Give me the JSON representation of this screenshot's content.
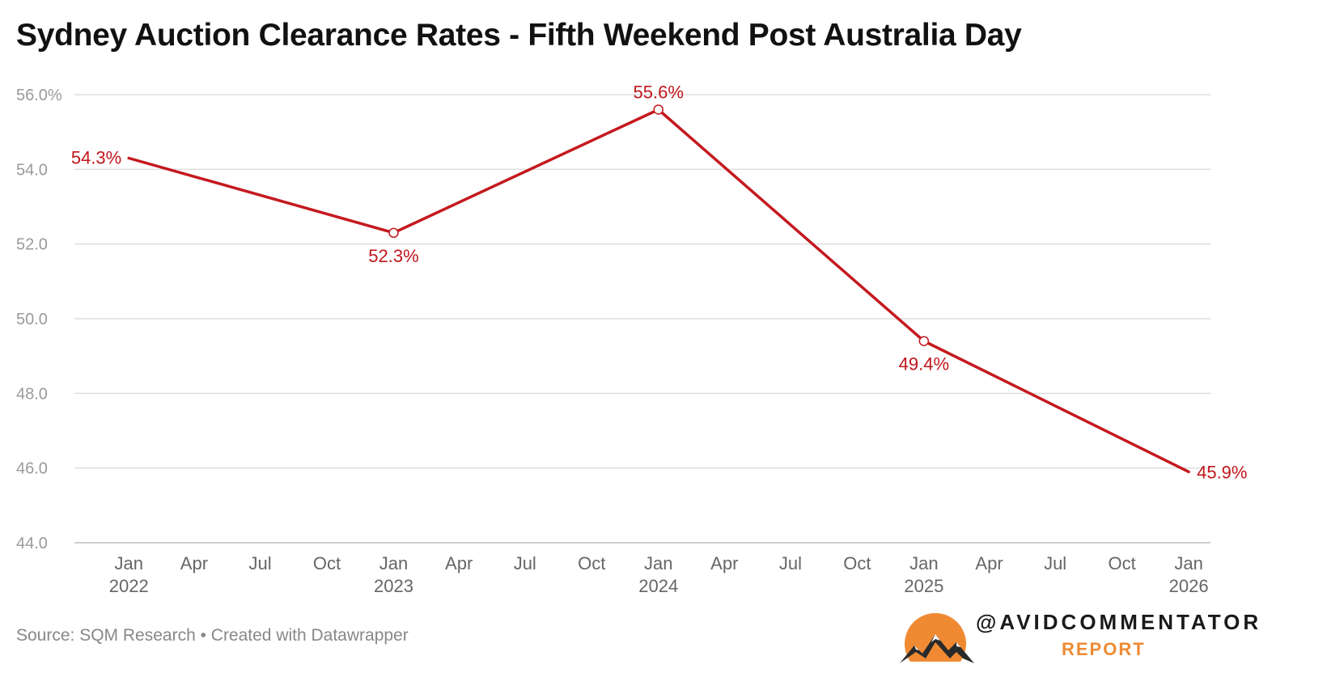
{
  "chart_data": {
    "type": "line",
    "title": "Sydney Auction Clearance Rates - Fifth Weekend Post Australia Day",
    "xlabel": "",
    "ylabel": "",
    "ylim": [
      44.0,
      56.0
    ],
    "yticks": [
      {
        "value": 56,
        "label": "56.0%"
      },
      {
        "value": 54,
        "label": "54.0"
      },
      {
        "value": 52,
        "label": "52.0"
      },
      {
        "value": 50,
        "label": "50.0"
      },
      {
        "value": 48,
        "label": "48.0"
      },
      {
        "value": 46,
        "label": "46.0"
      },
      {
        "value": 44,
        "label": "44.0"
      }
    ],
    "xlim": [
      "2021-10-18",
      "2026-01-31"
    ],
    "xticks": [
      {
        "date": "2022-01-01",
        "label": "Jan",
        "sublabel": "2022"
      },
      {
        "date": "2022-04-01",
        "label": "Apr",
        "sublabel": ""
      },
      {
        "date": "2022-07-01",
        "label": "Jul",
        "sublabel": ""
      },
      {
        "date": "2022-10-01",
        "label": "Oct",
        "sublabel": ""
      },
      {
        "date": "2023-01-01",
        "label": "Jan",
        "sublabel": "2023"
      },
      {
        "date": "2023-04-01",
        "label": "Apr",
        "sublabel": ""
      },
      {
        "date": "2023-07-01",
        "label": "Jul",
        "sublabel": ""
      },
      {
        "date": "2023-10-01",
        "label": "Oct",
        "sublabel": ""
      },
      {
        "date": "2024-01-01",
        "label": "Jan",
        "sublabel": "2024"
      },
      {
        "date": "2024-04-01",
        "label": "Apr",
        "sublabel": ""
      },
      {
        "date": "2024-07-01",
        "label": "Jul",
        "sublabel": ""
      },
      {
        "date": "2024-10-01",
        "label": "Oct",
        "sublabel": ""
      },
      {
        "date": "2025-01-01",
        "label": "Jan",
        "sublabel": "2025"
      },
      {
        "date": "2025-04-01",
        "label": "Apr",
        "sublabel": ""
      },
      {
        "date": "2025-07-01",
        "label": "Jul",
        "sublabel": ""
      },
      {
        "date": "2025-10-01",
        "label": "Oct",
        "sublabel": ""
      },
      {
        "date": "2026-01-01",
        "label": "Jan",
        "sublabel": "2026"
      }
    ],
    "grid": true,
    "series": [
      {
        "color": "#c4191f",
        "points": [
          {
            "date": "2022-01-01",
            "value": 54.3,
            "label": "54.3%",
            "marker": false,
            "label_pos": "left"
          },
          {
            "date": "2023-01-01",
            "value": 52.3,
            "label": "52.3%",
            "marker": true,
            "label_pos": "below"
          },
          {
            "date": "2024-01-01",
            "value": 55.6,
            "label": "55.6%",
            "marker": true,
            "label_pos": "above"
          },
          {
            "date": "2025-01-01",
            "value": 49.4,
            "label": "49.4%",
            "marker": true,
            "label_pos": "below"
          },
          {
            "date": "2026-01-01",
            "value": 45.9,
            "label": "45.9%",
            "marker": false,
            "label_pos": "right"
          }
        ]
      }
    ]
  },
  "footer": {
    "source": "Source: SQM Research • Created with Datawrapper"
  },
  "brand": {
    "handle": "@AVIDCOMMENTATOR",
    "sub": "REPORT",
    "sun_color": "#ef8a33"
  }
}
